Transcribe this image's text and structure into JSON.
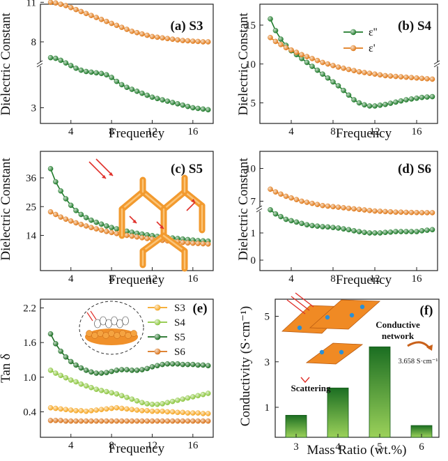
{
  "colors": {
    "green": "#1e7a2a",
    "orange": "#e07a1a",
    "s3": "#f5a623",
    "s4": "#8cc63f",
    "s5": "#1b6e22",
    "s6": "#d9731a"
  },
  "chart_data": [
    {
      "type": "line",
      "title": "(a) S3",
      "xlabel": "Frequency",
      "ylabel": "Dielectric Constant",
      "xlim": [
        1,
        18
      ],
      "xticks": [
        "4",
        "8",
        "12",
        "16"
      ],
      "yticks": [
        "3",
        "8",
        "11"
      ],
      "broken_axis": true,
      "x": [
        2.0,
        2.5,
        3.0,
        3.5,
        4.0,
        4.5,
        5.0,
        5.5,
        6.0,
        6.5,
        7.0,
        7.5,
        8.0,
        8.5,
        9.0,
        9.5,
        10.0,
        10.5,
        11.0,
        11.5,
        12.0,
        12.5,
        13.0,
        13.5,
        14.0,
        14.5,
        15.0,
        15.5,
        16.0,
        16.5,
        17.0,
        17.5
      ],
      "series": [
        {
          "name": "ε'",
          "color": "#e07a1a",
          "values": [
            11.0,
            10.95,
            10.85,
            10.75,
            10.6,
            10.45,
            10.3,
            10.15,
            10.0,
            9.85,
            9.7,
            9.55,
            9.4,
            9.25,
            9.1,
            8.95,
            8.8,
            8.7,
            8.6,
            8.5,
            8.4,
            8.35,
            8.3,
            8.25,
            8.2,
            8.15,
            8.1,
            8.08,
            8.05,
            8.03,
            8.0,
            8.0
          ]
        },
        {
          "name": "ε''",
          "color": "#1e7a2a",
          "values": [
            6.8,
            6.75,
            6.6,
            6.4,
            6.2,
            6.0,
            5.85,
            5.75,
            5.7,
            5.65,
            5.6,
            5.5,
            5.3,
            5.0,
            4.75,
            4.55,
            4.4,
            4.25,
            4.1,
            3.95,
            3.8,
            3.7,
            3.6,
            3.5,
            3.4,
            3.3,
            3.2,
            3.1,
            3.0,
            2.95,
            2.9,
            2.85
          ]
        }
      ]
    },
    {
      "type": "line",
      "title": "(b) S4",
      "xlabel": "Frequency",
      "ylabel": "Dielectric Constant",
      "xlim": [
        1,
        18
      ],
      "ylim": [
        3.5,
        17
      ],
      "xticks": [
        "4",
        "8",
        "12",
        "16"
      ],
      "yticks": [
        "5",
        "10",
        "15"
      ],
      "legend": [
        "ε''",
        "ε'"
      ],
      "legend_position": "top-right",
      "x": [
        2.0,
        2.5,
        3.0,
        3.5,
        4.0,
        4.5,
        5.0,
        5.5,
        6.0,
        6.5,
        7.0,
        7.5,
        8.0,
        8.5,
        9.0,
        9.5,
        10.0,
        10.5,
        11.0,
        11.5,
        12.0,
        12.5,
        13.0,
        13.5,
        14.0,
        14.5,
        15.0,
        15.5,
        16.0,
        16.5,
        17.0,
        17.5
      ],
      "series": [
        {
          "name": "ε''",
          "color": "#1e7a2a",
          "values": [
            15.8,
            14.3,
            13.2,
            12.4,
            11.7,
            11.2,
            10.7,
            10.2,
            9.7,
            9.2,
            8.7,
            8.2,
            7.7,
            7.2,
            6.6,
            6.0,
            5.4,
            5.0,
            4.75,
            4.6,
            4.6,
            4.7,
            4.8,
            4.95,
            5.1,
            5.25,
            5.4,
            5.5,
            5.6,
            5.7,
            5.75,
            5.8
          ]
        },
        {
          "name": "ε'",
          "color": "#e07a1a",
          "values": [
            13.4,
            12.9,
            12.5,
            12.1,
            11.8,
            11.5,
            11.2,
            10.95,
            10.7,
            10.45,
            10.2,
            10.0,
            9.8,
            9.6,
            9.45,
            9.3,
            9.15,
            9.0,
            8.9,
            8.8,
            8.7,
            8.6,
            8.5,
            8.45,
            8.4,
            8.35,
            8.3,
            8.25,
            8.2,
            8.15,
            8.1,
            8.05
          ]
        }
      ]
    },
    {
      "type": "line",
      "title": "(c) S5",
      "xlabel": "Frequency",
      "ylabel": "Dielectric Constant",
      "xlim": [
        1,
        18
      ],
      "ylim": [
        8,
        42
      ],
      "xticks": [
        "4",
        "8",
        "12",
        "16"
      ],
      "yticks": [
        "14",
        "25",
        "36"
      ],
      "x": [
        2.0,
        2.5,
        3.0,
        3.5,
        4.0,
        4.5,
        5.0,
        5.5,
        6.0,
        6.5,
        7.0,
        7.5,
        8.0,
        8.5,
        9.0,
        9.5,
        10.0,
        10.5,
        11.0,
        11.5,
        12.0,
        12.5,
        13.0,
        13.5,
        14.0,
        14.5,
        15.0,
        15.5,
        16.0,
        16.5,
        17.0,
        17.5
      ],
      "series": [
        {
          "name": "ε''",
          "color": "#1e7a2a",
          "values": [
            39.5,
            34.5,
            31.0,
            28.0,
            25.5,
            23.5,
            22.0,
            20.8,
            19.8,
            19.0,
            18.3,
            17.6,
            17.0,
            16.5,
            16.0,
            15.6,
            15.2,
            14.8,
            14.5,
            14.2,
            13.9,
            13.6,
            13.4,
            13.2,
            13.0,
            12.8,
            12.6,
            12.4,
            12.2,
            12.0,
            11.9,
            11.8
          ]
        },
        {
          "name": "ε'",
          "color": "#e07a1a",
          "values": [
            23.0,
            22.0,
            21.0,
            20.2,
            19.5,
            18.8,
            18.2,
            17.6,
            17.0,
            16.5,
            16.0,
            15.5,
            15.1,
            14.7,
            14.3,
            14.0,
            13.7,
            13.4,
            13.1,
            12.8,
            12.6,
            12.3,
            12.1,
            11.9,
            11.7,
            11.5,
            11.3,
            11.1,
            11.0,
            10.9,
            10.8,
            10.7
          ]
        }
      ]
    },
    {
      "type": "line",
      "title": "(d) S6",
      "xlabel": "Frequency",
      "ylabel": "Dielectric Constant",
      "xlim": [
        1,
        18
      ],
      "xticks": [
        "4",
        "8",
        "12",
        "16"
      ],
      "yticks": [
        "0",
        "1",
        "7",
        "10"
      ],
      "broken_axis": true,
      "x": [
        2.0,
        2.5,
        3.0,
        3.5,
        4.0,
        4.5,
        5.0,
        5.5,
        6.0,
        6.5,
        7.0,
        7.5,
        8.0,
        8.5,
        9.0,
        9.5,
        10.0,
        10.5,
        11.0,
        11.5,
        12.0,
        12.5,
        13.0,
        13.5,
        14.0,
        14.5,
        15.0,
        15.5,
        16.0,
        16.5,
        17.0,
        17.5
      ],
      "series": [
        {
          "name": "ε'",
          "color": "#e07a1a",
          "values": [
            8.1,
            7.85,
            7.65,
            7.45,
            7.3,
            7.15,
            7.0,
            6.9,
            6.8,
            6.7,
            6.6,
            6.55,
            6.5,
            6.45,
            6.4,
            6.35,
            6.3,
            6.25,
            6.2,
            6.15,
            6.1,
            6.08,
            6.05,
            6.03,
            6.0,
            6.0,
            5.98,
            5.97,
            5.96,
            5.95,
            5.95,
            5.95
          ]
        },
        {
          "name": "ε''",
          "color": "#1e7a2a",
          "values": [
            1.85,
            1.7,
            1.6,
            1.5,
            1.45,
            1.4,
            1.35,
            1.3,
            1.27,
            1.25,
            1.23,
            1.22,
            1.2,
            1.18,
            1.15,
            1.12,
            1.08,
            1.05,
            1.02,
            1.0,
            1.0,
            1.0,
            1.02,
            1.03,
            1.05,
            1.05,
            1.05,
            1.05,
            1.05,
            1.08,
            1.1,
            1.12
          ]
        }
      ]
    },
    {
      "type": "line",
      "title": "(e)",
      "xlabel": "Frequency",
      "ylabel": "Tan δ",
      "xlim": [
        1,
        18
      ],
      "ylim": [
        0.2,
        2.45
      ],
      "xticks": [
        "4",
        "8",
        "12",
        "16"
      ],
      "yticks": [
        "0.4",
        "1.0",
        "1.6",
        "2.2"
      ],
      "legend": [
        "S3",
        "S4",
        "S5",
        "S6"
      ],
      "legend_position": "top-right",
      "x": [
        2.0,
        2.5,
        3.0,
        3.5,
        4.0,
        4.5,
        5.0,
        5.5,
        6.0,
        6.5,
        7.0,
        7.5,
        8.0,
        8.5,
        9.0,
        9.5,
        10.0,
        10.5,
        11.0,
        11.5,
        12.0,
        12.5,
        13.0,
        13.5,
        14.0,
        14.5,
        15.0,
        15.5,
        16.0,
        16.5,
        17.0,
        17.5
      ],
      "series": [
        {
          "name": "S3",
          "color": "#f5a623",
          "values": [
            0.47,
            0.46,
            0.45,
            0.44,
            0.43,
            0.42,
            0.42,
            0.41,
            0.42,
            0.43,
            0.44,
            0.45,
            0.46,
            0.47,
            0.46,
            0.45,
            0.44,
            0.43,
            0.42,
            0.42,
            0.41,
            0.41,
            0.41,
            0.4,
            0.4,
            0.39,
            0.39,
            0.38,
            0.38,
            0.38,
            0.37,
            0.37
          ]
        },
        {
          "name": "S4",
          "color": "#8cc63f",
          "values": [
            1.12,
            1.07,
            1.03,
            0.99,
            0.95,
            0.92,
            0.88,
            0.85,
            0.82,
            0.79,
            0.77,
            0.75,
            0.73,
            0.71,
            0.68,
            0.65,
            0.62,
            0.59,
            0.56,
            0.54,
            0.53,
            0.53,
            0.54,
            0.56,
            0.58,
            0.6,
            0.62,
            0.64,
            0.66,
            0.68,
            0.7,
            0.72
          ]
        },
        {
          "name": "S5",
          "color": "#1b6e22",
          "values": [
            1.75,
            1.58,
            1.45,
            1.35,
            1.27,
            1.21,
            1.16,
            1.12,
            1.09,
            1.07,
            1.07,
            1.08,
            1.1,
            1.12,
            1.13,
            1.13,
            1.12,
            1.12,
            1.13,
            1.15,
            1.18,
            1.2,
            1.22,
            1.23,
            1.23,
            1.23,
            1.22,
            1.22,
            1.22,
            1.21,
            1.21,
            1.2
          ]
        },
        {
          "name": "S6",
          "color": "#d9731a",
          "values": [
            0.25,
            0.25,
            0.25,
            0.24,
            0.24,
            0.24,
            0.24,
            0.24,
            0.24,
            0.24,
            0.24,
            0.24,
            0.24,
            0.24,
            0.24,
            0.24,
            0.24,
            0.24,
            0.24,
            0.24,
            0.24,
            0.24,
            0.24,
            0.24,
            0.24,
            0.24,
            0.24,
            0.24,
            0.24,
            0.24,
            0.24,
            0.24
          ]
        }
      ]
    },
    {
      "type": "bar",
      "title": "(f)",
      "xlabel": "Mass Ratio (wt.%)",
      "ylabel": "Conductivity (S·cm⁻¹)",
      "ylim": [
        0,
        5.8
      ],
      "categories": [
        "3",
        "4",
        "5",
        "6"
      ],
      "values": [
        0.65,
        1.85,
        3.658,
        0.2
      ],
      "yticks": [
        "1",
        "3",
        "5"
      ],
      "annotations": {
        "network": "Conductive network",
        "value": "3.658 S·cm⁻¹",
        "scattering": "Scattering"
      }
    }
  ]
}
